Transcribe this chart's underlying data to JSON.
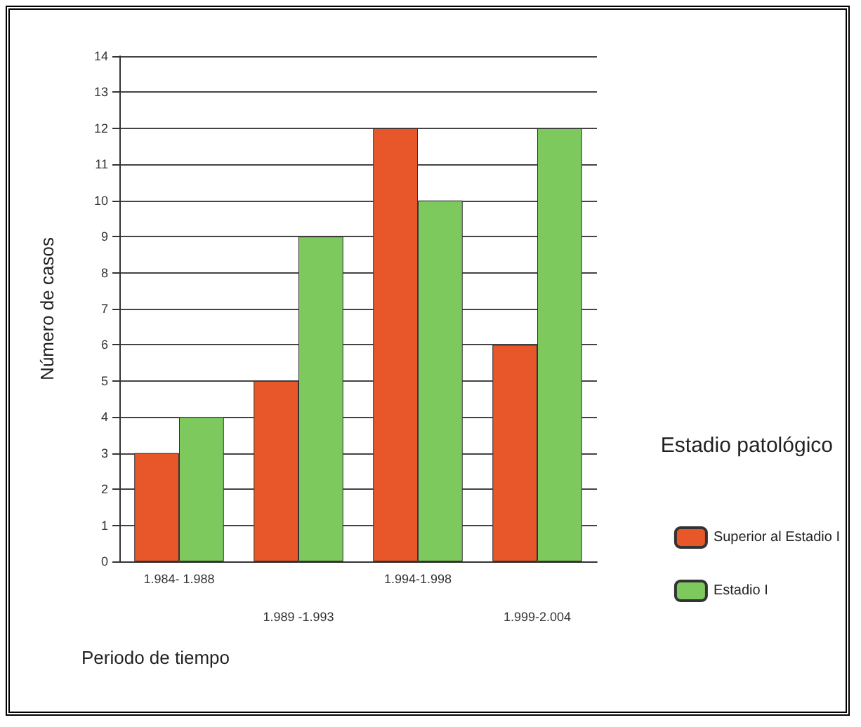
{
  "chart_data": {
    "type": "bar",
    "xlabel": "Periodo de tiempo",
    "ylabel": "Número de casos",
    "legend_title": "Estadio patológico",
    "categories": [
      "1.984- 1.988",
      "1.989 -1.993",
      "1.994-1.998",
      "1.999-2.004"
    ],
    "series": [
      {
        "name": "Superior al Estadio I",
        "color": "#e8572a",
        "values": [
          3,
          5,
          12,
          6
        ]
      },
      {
        "name": "Estadio I",
        "color": "#7dc95e",
        "values": [
          4,
          9,
          10,
          12
        ]
      }
    ],
    "ylim": [
      0,
      14
    ],
    "yticks": [
      0,
      1,
      2,
      3,
      4,
      5,
      6,
      7,
      8,
      9,
      10,
      11,
      12,
      13,
      14
    ],
    "grid": "y",
    "legend": "right"
  }
}
